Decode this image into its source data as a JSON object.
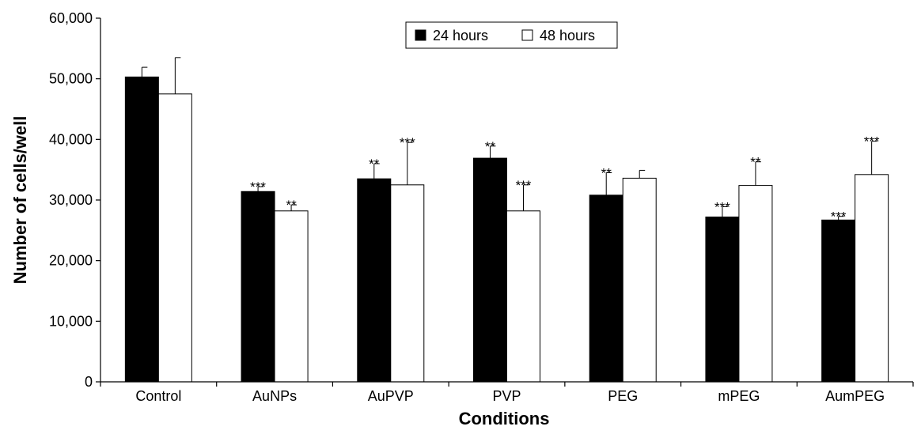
{
  "chart_data": {
    "type": "bar",
    "title": "",
    "xlabel": "Conditions",
    "ylabel": "Number of cells/well",
    "ylim": [
      0,
      60000
    ],
    "yticks": [
      0,
      10000,
      20000,
      30000,
      40000,
      50000,
      60000
    ],
    "ytick_labels": [
      "0",
      "10,000",
      "20,000",
      "30,000",
      "40,000",
      "50,000",
      "60,000"
    ],
    "categories": [
      "Control",
      "AuNPs",
      "AuPVP",
      "PVP",
      "PEG",
      "mPEG",
      "AumPEG"
    ],
    "series": [
      {
        "name": "24 hours",
        "color": "#000000",
        "values": [
          50300,
          31400,
          33500,
          36900,
          30800,
          27200,
          26700
        ],
        "error": [
          1600,
          800,
          2500,
          2000,
          3700,
          1700,
          600
        ],
        "significance": [
          "",
          "***",
          "**",
          "**",
          "**",
          "***",
          "***"
        ]
      },
      {
        "name": "48 hours",
        "color": "#ffffff",
        "values": [
          47500,
          28200,
          32500,
          28200,
          33600,
          32400,
          34200
        ],
        "error": [
          6000,
          1000,
          7000,
          4300,
          1300,
          3900,
          5500
        ],
        "significance": [
          "",
          "**",
          "***",
          "***",
          "",
          "**",
          "***"
        ]
      }
    ],
    "legend": {
      "placement": "top-center",
      "bordered": true
    },
    "grid": false
  }
}
